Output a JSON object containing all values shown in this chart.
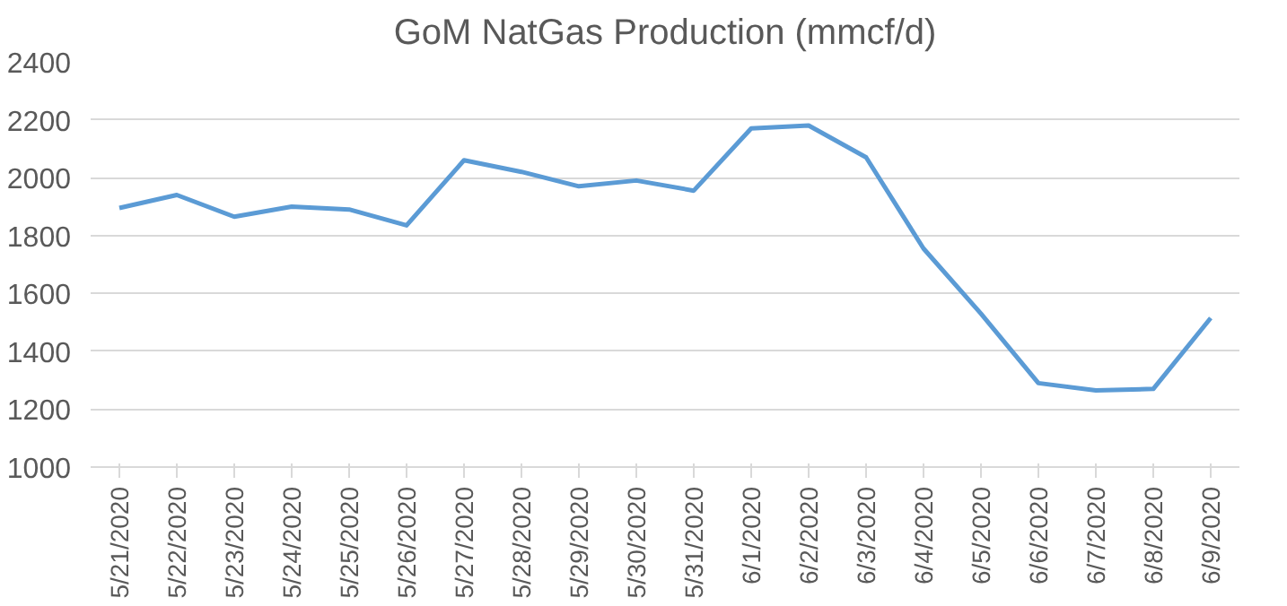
{
  "chart_data": {
    "type": "line",
    "title": "GoM NatGas Production (mmcf/d)",
    "categories": [
      "5/21/2020",
      "5/22/2020",
      "5/23/2020",
      "5/24/2020",
      "5/25/2020",
      "5/26/2020",
      "5/27/2020",
      "5/28/2020",
      "5/29/2020",
      "5/30/2020",
      "5/31/2020",
      "6/1/2020",
      "6/2/2020",
      "6/3/2020",
      "6/4/2020",
      "6/5/2020",
      "6/6/2020",
      "6/7/2020",
      "6/8/2020",
      "6/9/2020"
    ],
    "series": [
      {
        "color": "#5b9bd5",
        "values": [
          1895,
          1940,
          1865,
          1900,
          1890,
          1835,
          2060,
          2020,
          1970,
          1990,
          1955,
          2170,
          2180,
          2070,
          1755,
          1530,
          1290,
          1265,
          1270,
          1515
        ]
      }
    ],
    "ylim": [
      1000,
      2400
    ],
    "yticks": [
      1000,
      1200,
      1400,
      1600,
      1800,
      2000,
      2200,
      2400
    ],
    "grid": "y",
    "marker": "none",
    "line_style": "solid"
  }
}
